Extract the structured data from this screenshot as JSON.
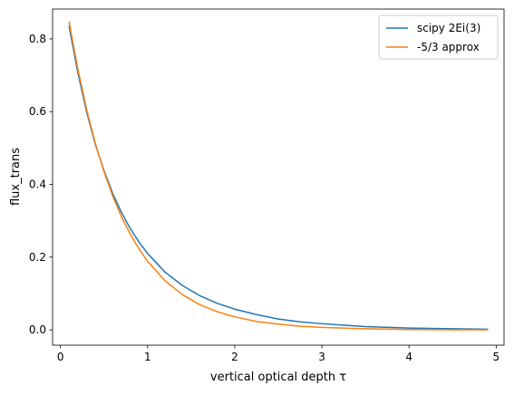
{
  "chart_data": {
    "type": "line",
    "title": "",
    "xlabel": "vertical optical depth τ",
    "ylabel": "flux_trans",
    "xlim": [
      -0.09,
      5.09
    ],
    "ylim": [
      -0.042,
      0.882
    ],
    "x_ticks": [
      0,
      1,
      2,
      3,
      4,
      5
    ],
    "x_tick_labels": [
      "0",
      "1",
      "2",
      "3",
      "4",
      "5"
    ],
    "y_ticks": [
      0.0,
      0.2,
      0.4,
      0.6,
      0.8
    ],
    "y_tick_labels": [
      "0.0",
      "0.2",
      "0.4",
      "0.6",
      "0.8"
    ],
    "grid": false,
    "legend_position": "top-right",
    "series": [
      {
        "name": "scipy 2Ei(3)",
        "color": "#1f77b4",
        "x": [
          0.1,
          0.2,
          0.3,
          0.4,
          0.5,
          0.6,
          0.7,
          0.8,
          0.9,
          1.0,
          1.2,
          1.4,
          1.6,
          1.8,
          2.0,
          2.25,
          2.5,
          2.75,
          3.0,
          3.5,
          4.0,
          4.5,
          4.9
        ],
        "y": [
          0.834,
          0.707,
          0.6,
          0.51,
          0.438,
          0.375,
          0.323,
          0.279,
          0.242,
          0.21,
          0.159,
          0.122,
          0.094,
          0.073,
          0.057,
          0.042,
          0.03,
          0.022,
          0.017,
          0.009,
          0.005,
          0.003,
          0.002
        ]
      },
      {
        "name": "-5/3 approx",
        "color": "#ff7f0e",
        "x": [
          0.1,
          0.2,
          0.3,
          0.4,
          0.5,
          0.6,
          0.7,
          0.8,
          0.9,
          1.0,
          1.2,
          1.4,
          1.6,
          1.8,
          2.0,
          2.25,
          2.5,
          2.75,
          3.0,
          3.5,
          4.0,
          4.5,
          4.9
        ],
        "y": [
          0.846,
          0.717,
          0.607,
          0.513,
          0.435,
          0.368,
          0.311,
          0.264,
          0.223,
          0.189,
          0.135,
          0.097,
          0.069,
          0.05,
          0.036,
          0.023,
          0.016,
          0.01,
          0.007,
          0.003,
          0.001,
          0.0005,
          0.0003
        ]
      }
    ]
  }
}
